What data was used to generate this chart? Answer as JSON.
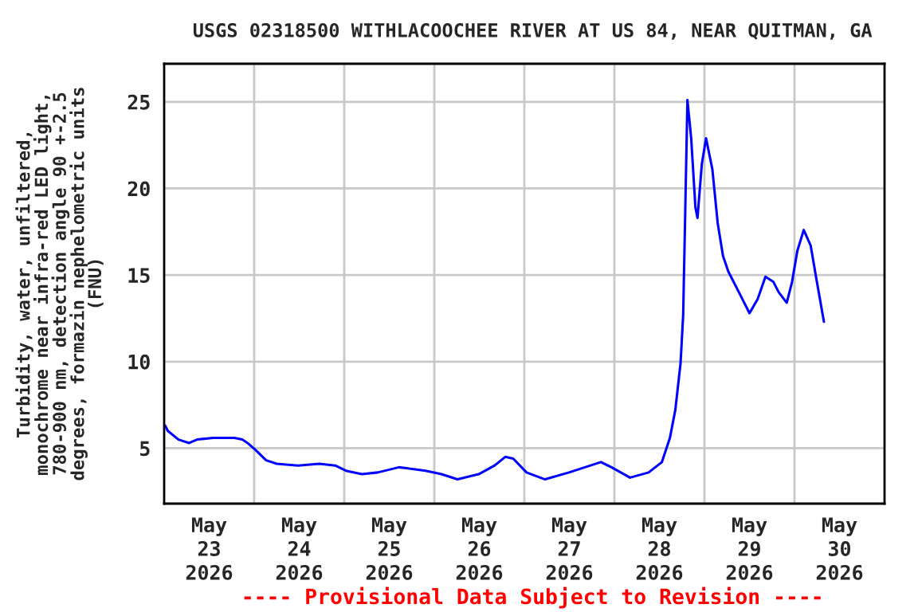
{
  "chart_data": {
    "type": "line",
    "title": "USGS 02318500 WITHLACOOCHEE RIVER AT US 84, NEAR QUITMAN, GA",
    "ylabel": "Turbidity, water, unfiltered,\nmonochrome near infra-red LED light,\n780-900 nm, detection angle 90 +-2.5\ndegrees, formazin nephelometric units\n(FNU)",
    "annotations": [
      "---- Provisional Data Subject to Revision ----"
    ],
    "x": [
      "2026-05-23T00:17",
      "2026-05-23T00:59",
      "2026-05-23T03:49",
      "2026-05-23T06:39",
      "2026-05-23T08:47",
      "2026-05-23T13:02",
      "2026-05-23T18:42",
      "2026-05-23T20:49",
      "2026-05-23T22:14",
      "2026-05-24T00:21",
      "2026-05-24T03:11",
      "2026-05-24T06:01",
      "2026-05-24T11:41",
      "2026-05-24T17:21",
      "2026-05-24T21:36",
      "2026-05-25T00:26",
      "2026-05-25T04:41",
      "2026-05-25T08:56",
      "2026-05-25T14:35",
      "2026-05-25T21:40",
      "2026-05-26T01:55",
      "2026-05-26T06:10",
      "2026-05-26T11:50",
      "2026-05-26T16:05",
      "2026-05-26T18:55",
      "2026-05-26T21:02",
      "2026-05-27T00:35",
      "2026-05-27T05:31",
      "2026-05-27T11:54",
      "2026-05-27T16:09",
      "2026-05-27T20:24",
      "2026-05-27T23:14",
      "2026-05-28T04:10",
      "2026-05-28T09:08",
      "2026-05-28T12:40",
      "2026-05-28T14:48",
      "2026-05-28T16:14",
      "2026-05-28T17:38",
      "2026-05-28T18:20",
      "2026-05-28T18:46",
      "2026-05-28T19:28",
      "2026-05-28T20:28",
      "2026-05-28T21:36",
      "2026-05-28T22:09",
      "2026-05-28T23:18",
      "2026-05-29T00:26",
      "2026-05-29T02:07",
      "2026-05-29T03:32",
      "2026-05-29T04:57",
      "2026-05-29T06:22",
      "2026-05-29T09:12",
      "2026-05-29T12:01",
      "2026-05-29T14:10",
      "2026-05-29T16:16",
      "2026-05-29T18:24",
      "2026-05-29T19:49",
      "2026-05-29T21:56",
      "2026-05-29T23:21",
      "2026-05-30T00:46",
      "2026-05-30T02:28",
      "2026-05-30T04:19",
      "2026-05-30T05:44",
      "2026-05-30T07:51"
    ],
    "series": [
      {
        "color": "#0000ff",
        "values": [
          6.3,
          6.0,
          5.5,
          5.3,
          5.5,
          5.6,
          5.6,
          5.5,
          5.3,
          4.9,
          4.3,
          4.1,
          4.0,
          4.1,
          4.0,
          3.7,
          3.5,
          3.6,
          3.9,
          3.7,
          3.5,
          3.2,
          3.5,
          4.0,
          4.5,
          4.4,
          3.6,
          3.2,
          3.6,
          3.9,
          4.2,
          3.9,
          3.3,
          3.6,
          4.2,
          5.6,
          7.2,
          9.9,
          12.7,
          17.4,
          25.1,
          22.9,
          18.9,
          18.3,
          21.4,
          22.9,
          21.1,
          18.0,
          16.1,
          15.2,
          14.0,
          12.8,
          13.6,
          14.9,
          14.6,
          14.0,
          13.4,
          14.6,
          16.4,
          17.6,
          16.7,
          14.9,
          12.3
        ]
      }
    ],
    "xlim": [
      "2026-05-23",
      "2026-05-31"
    ],
    "xticks": [
      {
        "value": "2026-05-23T12:00",
        "label": "May\n23\n2026"
      },
      {
        "value": "2026-05-24T12:00",
        "label": "May\n24\n2026"
      },
      {
        "value": "2026-05-25T12:00",
        "label": "May\n25\n2026"
      },
      {
        "value": "2026-05-26T12:00",
        "label": "May\n26\n2026"
      },
      {
        "value": "2026-05-27T12:00",
        "label": "May\n27\n2026"
      },
      {
        "value": "2026-05-28T12:00",
        "label": "May\n28\n2026"
      },
      {
        "value": "2026-05-29T12:00",
        "label": "May\n29\n2026"
      },
      {
        "value": "2026-05-30T12:00",
        "label": "May\n30\n2026"
      },
      {
        "value": "2026-05-24",
        "label": null
      },
      {
        "value": "2026-05-25",
        "label": null
      },
      {
        "value": "2026-05-26",
        "label": null
      },
      {
        "value": "2026-05-27",
        "label": null
      },
      {
        "value": "2026-05-28",
        "label": null
      },
      {
        "value": "2026-05-29",
        "label": null
      },
      {
        "value": "2026-05-30",
        "label": null
      }
    ],
    "ylim": [
      1.8,
      27.2
    ],
    "yticks": [
      5,
      10,
      15,
      20,
      25
    ],
    "grid": true,
    "line_style": "solid",
    "marker": "none"
  }
}
